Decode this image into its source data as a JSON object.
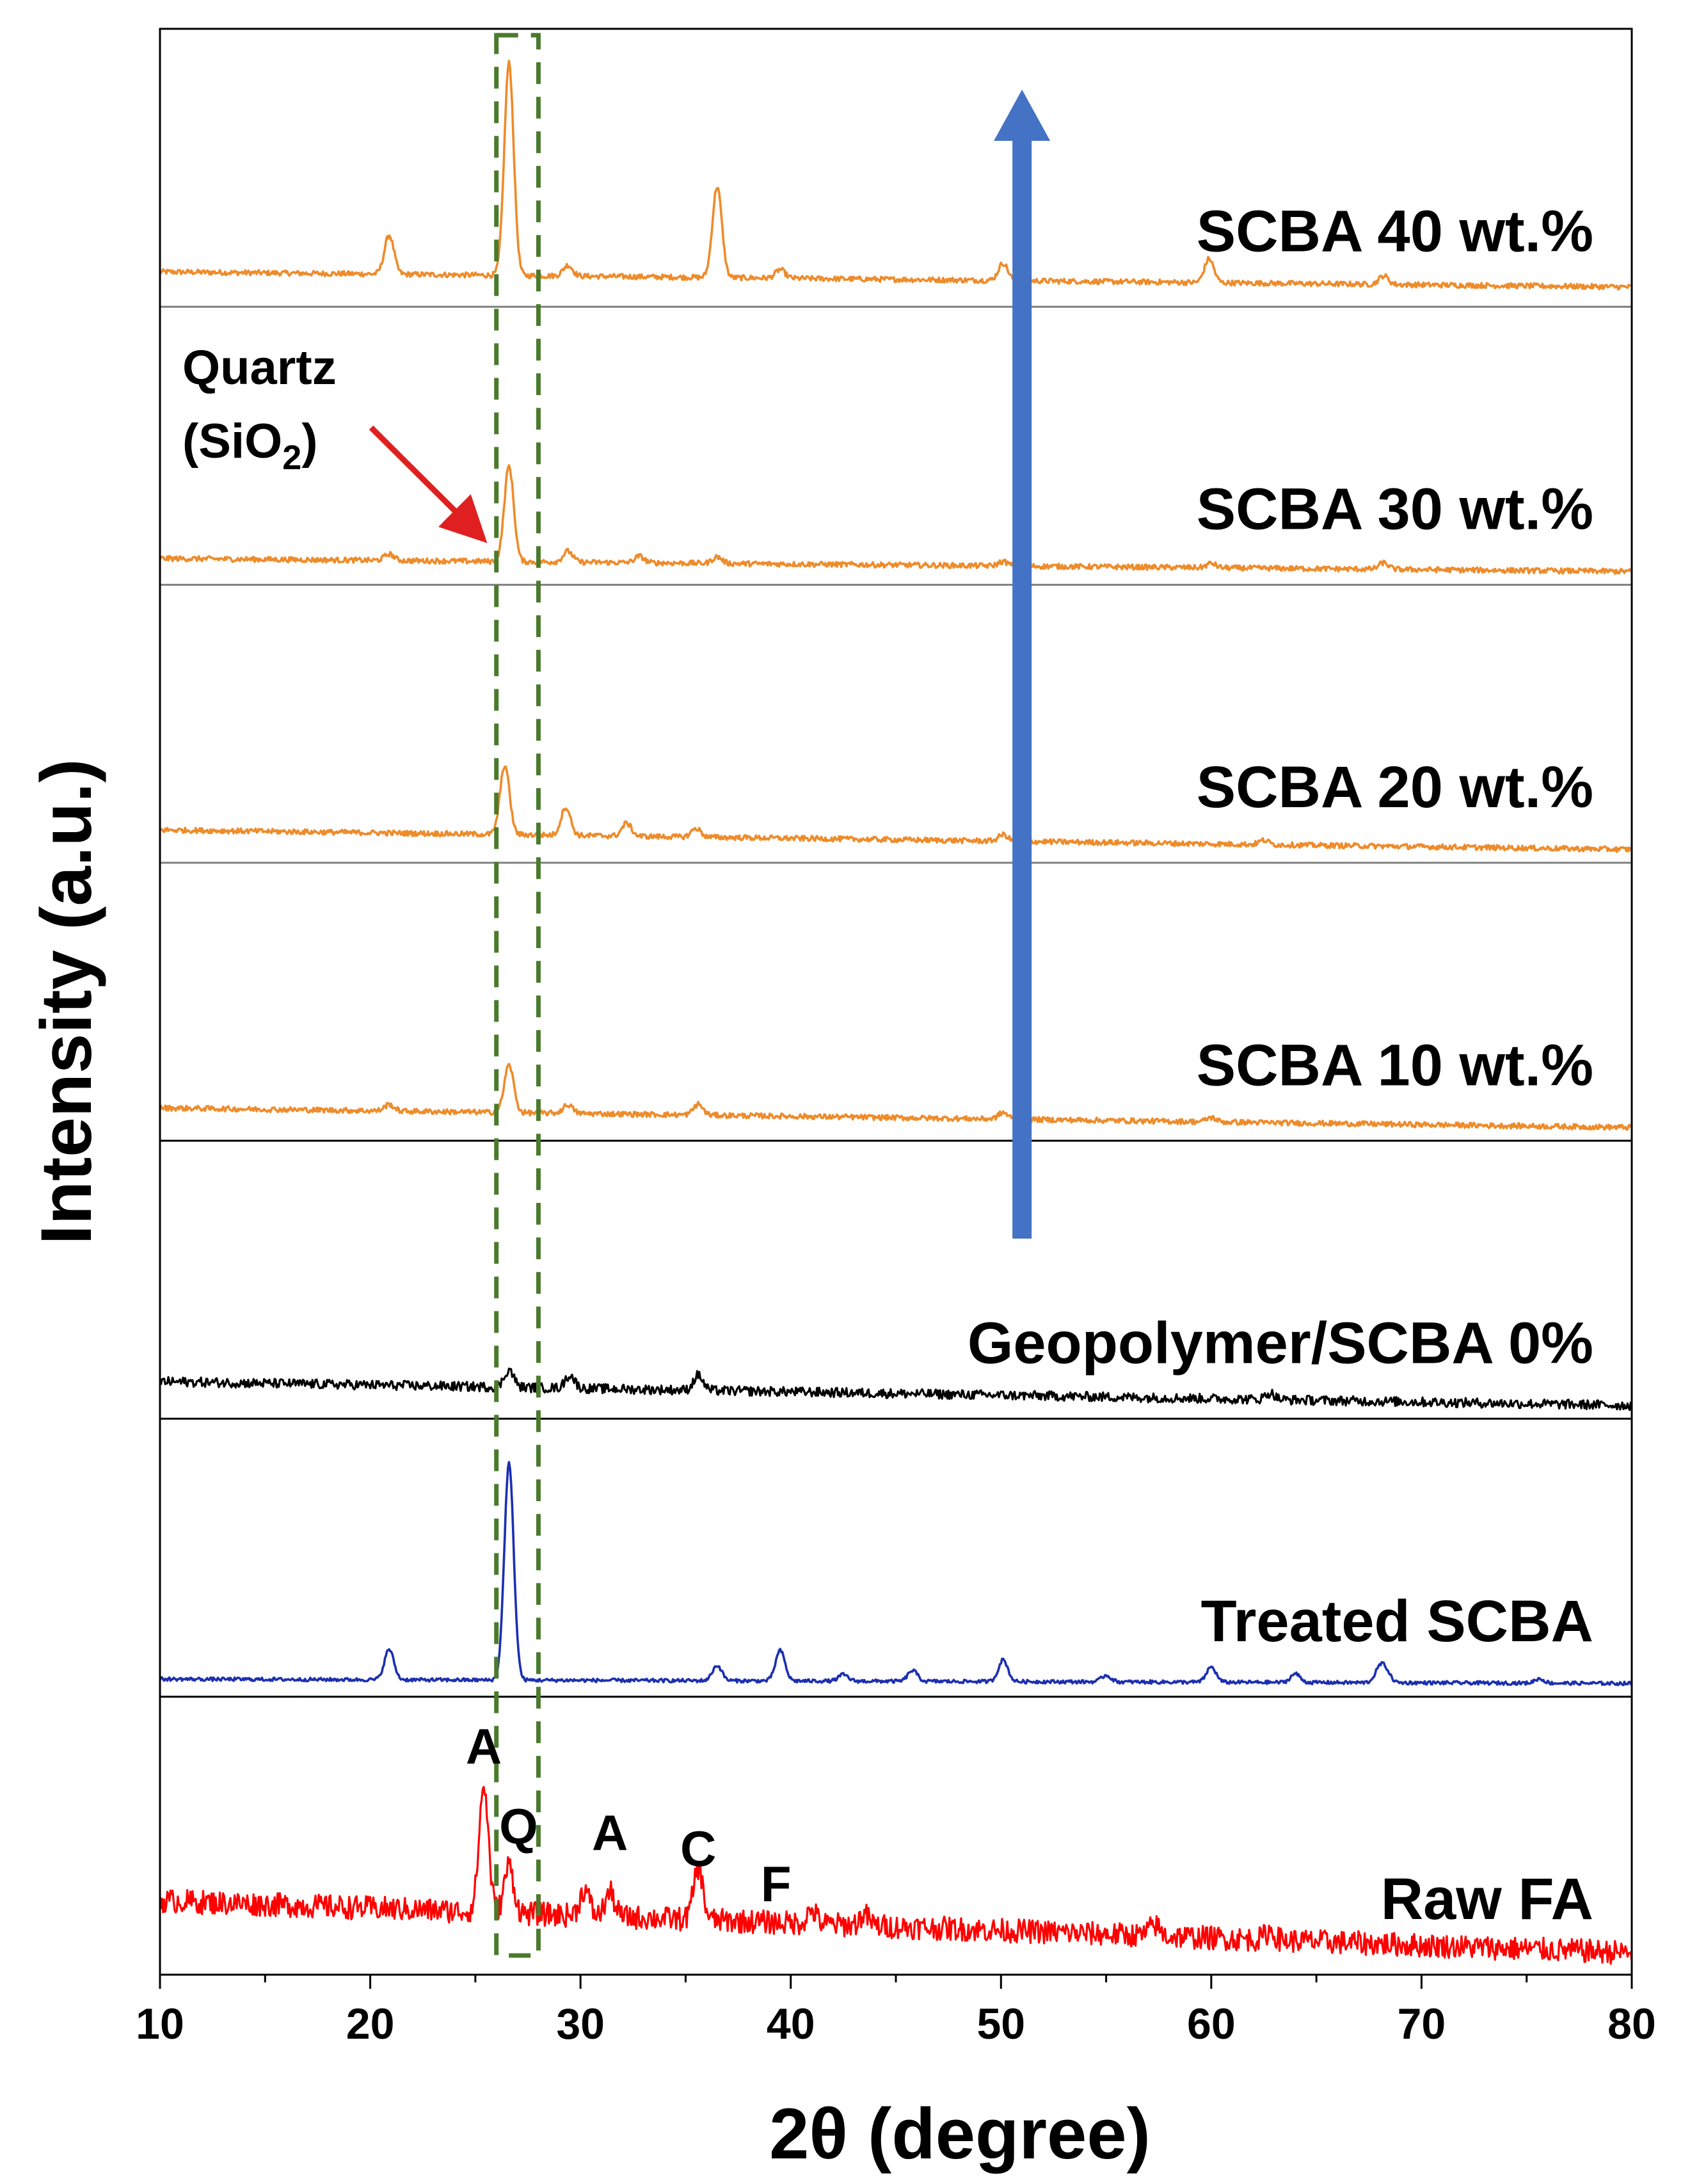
{
  "chart_data": {
    "type": "line",
    "subtype": "stacked XRD patterns",
    "title": "",
    "xlabel": "2θ (degree)",
    "ylabel": "Intensity (a.u.)",
    "xlim": [
      10,
      80
    ],
    "xticks": [
      10,
      20,
      30,
      40,
      50,
      60,
      70,
      80
    ],
    "grid": false,
    "series": [
      {
        "name": "SCBA 40 wt.%",
        "color": "#ee8b2a",
        "baseline": 0.12,
        "slope": 0.07,
        "noise": 0.012,
        "peaks": [
          {
            "x": 20.9,
            "h": 0.18
          },
          {
            "x": 26.6,
            "h": 0.98
          },
          {
            "x": 29.4,
            "h": 0.05
          },
          {
            "x": 36.5,
            "h": 0.42
          },
          {
            "x": 39.5,
            "h": 0.04
          },
          {
            "x": 50.1,
            "h": 0.08
          },
          {
            "x": 59.9,
            "h": 0.11
          },
          {
            "x": 68.2,
            "h": 0.04
          }
        ]
      },
      {
        "name": "SCBA 30 wt.%",
        "color": "#ee8b2a",
        "baseline": 0.08,
        "slope": 0.06,
        "noise": 0.012,
        "peaks": [
          {
            "x": 20.9,
            "h": 0.03
          },
          {
            "x": 26.6,
            "h": 0.44
          },
          {
            "x": 29.4,
            "h": 0.05
          },
          {
            "x": 32.8,
            "h": 0.03
          },
          {
            "x": 36.5,
            "h": 0.03
          },
          {
            "x": 50.1,
            "h": 0.02
          },
          {
            "x": 60.0,
            "h": 0.02
          },
          {
            "x": 68.2,
            "h": 0.03
          }
        ]
      },
      {
        "name": "SCBA 20 wt.%",
        "color": "#ee8b2a",
        "baseline": 0.11,
        "slope": 0.09,
        "noise": 0.012,
        "peaks": [
          {
            "x": 26.4,
            "h": 0.32
          },
          {
            "x": 29.3,
            "h": 0.13
          },
          {
            "x": 32.2,
            "h": 0.06
          },
          {
            "x": 35.5,
            "h": 0.04
          },
          {
            "x": 50.1,
            "h": 0.03
          },
          {
            "x": 62.5,
            "h": 0.02
          }
        ]
      },
      {
        "name": "SCBA 10 wt.%",
        "color": "#ee8b2a",
        "baseline": 0.11,
        "slope": 0.09,
        "noise": 0.012,
        "peaks": [
          {
            "x": 20.9,
            "h": 0.03
          },
          {
            "x": 26.6,
            "h": 0.22
          },
          {
            "x": 29.4,
            "h": 0.04
          },
          {
            "x": 35.6,
            "h": 0.05
          },
          {
            "x": 50.1,
            "h": 0.03
          },
          {
            "x": 60.0,
            "h": 0.02
          }
        ]
      },
      {
        "name": "Geopolymer/SCBA 0%",
        "color": "#000000",
        "baseline": 0.13,
        "slope": 0.11,
        "noise": 0.022,
        "peaks": [
          {
            "x": 26.6,
            "h": 0.08
          },
          {
            "x": 29.5,
            "h": 0.06
          },
          {
            "x": 35.6,
            "h": 0.07
          },
          {
            "x": 62.8,
            "h": 0.03
          }
        ]
      },
      {
        "name": "Treated SCBA",
        "color": "#1c2fb0",
        "baseline": 0.04,
        "slope": 0.02,
        "noise": 0.008,
        "peaks": [
          {
            "x": 20.9,
            "h": 0.14
          },
          {
            "x": 26.6,
            "h": 1.0
          },
          {
            "x": 36.5,
            "h": 0.07
          },
          {
            "x": 39.5,
            "h": 0.14
          },
          {
            "x": 42.5,
            "h": 0.03
          },
          {
            "x": 45.8,
            "h": 0.05
          },
          {
            "x": 50.1,
            "h": 0.1
          },
          {
            "x": 55.0,
            "h": 0.03
          },
          {
            "x": 60.0,
            "h": 0.07
          },
          {
            "x": 64.0,
            "h": 0.04
          },
          {
            "x": 68.0,
            "h": 0.06
          },
          {
            "x": 68.3,
            "h": 0.05
          },
          {
            "x": 75.6,
            "h": 0.02
          }
        ]
      },
      {
        "name": "Raw FA",
        "color": "#ff0000",
        "baseline": 0.3,
        "slope": 0.24,
        "noise": 0.055,
        "peaks": [
          {
            "x": 25.4,
            "h": 0.58
          },
          {
            "x": 26.6,
            "h": 0.22
          },
          {
            "x": 30.2,
            "h": 0.12
          },
          {
            "x": 31.4,
            "h": 0.11
          },
          {
            "x": 35.6,
            "h": 0.24
          },
          {
            "x": 41.0,
            "h": 0.06
          },
          {
            "x": 43.5,
            "h": 0.05
          },
          {
            "x": 57.3,
            "h": 0.05
          },
          {
            "x": 62.8,
            "h": 0.04
          }
        ]
      }
    ],
    "peak_labels": [
      {
        "text": "A",
        "x": 25.4
      },
      {
        "text": "Q",
        "x": 26.6
      },
      {
        "text": "A",
        "x": 31.4
      },
      {
        "text": "C",
        "x": 35.6
      },
      {
        "text": "F",
        "x": 39.3
      }
    ],
    "highlight_band": {
      "x_range": [
        26.0,
        28.0
      ],
      "color": "#4a7a2c",
      "style": "dashed"
    },
    "annotations": {
      "quartz_line1": "Quartz",
      "quartz_line2_prefix": "(SiO",
      "quartz_subscript": "2",
      "quartz_line2_suffix": ")",
      "quartz_arrow_color": "#e02020",
      "trend_arrow_color": "#4472c4",
      "trend_arrow_x": 51.0
    }
  }
}
